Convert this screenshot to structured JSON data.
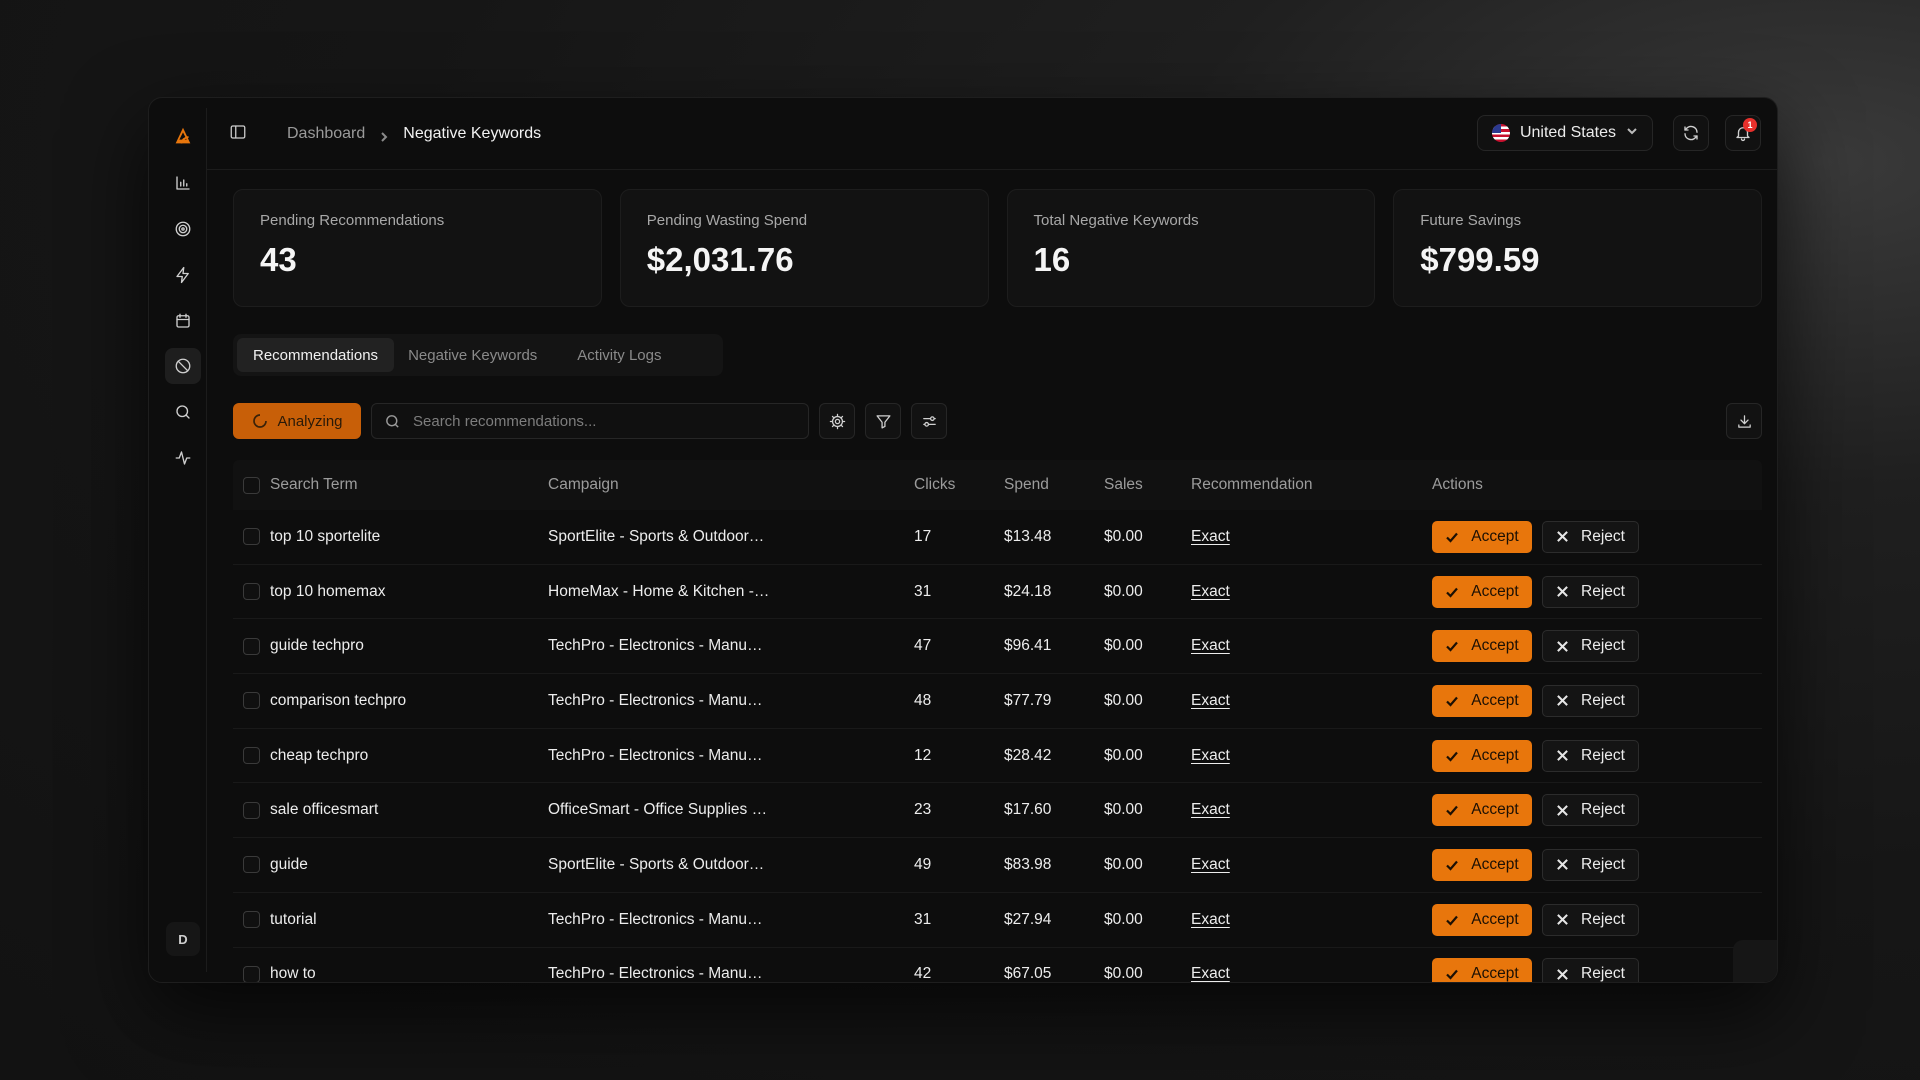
{
  "breadcrumb": {
    "root": "Dashboard",
    "current": "Negative Keywords"
  },
  "header": {
    "country": "United States",
    "notification_count": "1"
  },
  "sidebar": {
    "avatar_initial": "D"
  },
  "cards": [
    {
      "label": "Pending Recommendations",
      "value": "43"
    },
    {
      "label": "Pending Wasting Spend",
      "value": "$2,031.76"
    },
    {
      "label": "Total Negative Keywords",
      "value": "16"
    },
    {
      "label": "Future Savings",
      "value": "$799.59"
    }
  ],
  "tabs": [
    "Recommendations",
    "Negative Keywords",
    "Activity Logs"
  ],
  "toolbar": {
    "analyzing_label": "Analyzing",
    "search_placeholder": "Search recommendations..."
  },
  "table": {
    "headers": [
      "Search Term",
      "Campaign",
      "Clicks",
      "Spend",
      "Sales",
      "Recommendation",
      "Actions"
    ],
    "accept_label": "Accept",
    "reject_label": "Reject",
    "rows": [
      {
        "term": "top 10 sportelite",
        "campaign": "SportElite - Sports & Outdoor…",
        "clicks": "17",
        "spend": "$13.48",
        "sales": "$0.00",
        "rec": "Exact"
      },
      {
        "term": "top 10 homemax",
        "campaign": "HomeMax - Home & Kitchen -…",
        "clicks": "31",
        "spend": "$24.18",
        "sales": "$0.00",
        "rec": "Exact"
      },
      {
        "term": "guide techpro",
        "campaign": "TechPro - Electronics - Manu…",
        "clicks": "47",
        "spend": "$96.41",
        "sales": "$0.00",
        "rec": "Exact"
      },
      {
        "term": "comparison techpro",
        "campaign": "TechPro - Electronics - Manu…",
        "clicks": "48",
        "spend": "$77.79",
        "sales": "$0.00",
        "rec": "Exact"
      },
      {
        "term": "cheap techpro",
        "campaign": "TechPro - Electronics - Manu…",
        "clicks": "12",
        "spend": "$28.42",
        "sales": "$0.00",
        "rec": "Exact"
      },
      {
        "term": "sale officesmart",
        "campaign": "OfficeSmart - Office Supplies …",
        "clicks": "23",
        "spend": "$17.60",
        "sales": "$0.00",
        "rec": "Exact"
      },
      {
        "term": "guide",
        "campaign": "SportElite - Sports & Outdoor…",
        "clicks": "49",
        "spend": "$83.98",
        "sales": "$0.00",
        "rec": "Exact"
      },
      {
        "term": "tutorial",
        "campaign": "TechPro - Electronics - Manu…",
        "clicks": "31",
        "spend": "$27.94",
        "sales": "$0.00",
        "rec": "Exact"
      },
      {
        "term": "how to",
        "campaign": "TechPro - Electronics - Manu…",
        "clicks": "42",
        "spend": "$67.05",
        "sales": "$0.00",
        "rec": "Exact"
      }
    ]
  },
  "icons": {
    "rail": [
      "bar-chart-icon",
      "target-icon",
      "zap-icon",
      "calendar-icon",
      "ban-icon",
      "search-icon",
      "activity-icon"
    ]
  },
  "colors": {
    "accent": "#e8760c",
    "analyzing_bg": "#c85f08",
    "notification": "#e8302c"
  }
}
